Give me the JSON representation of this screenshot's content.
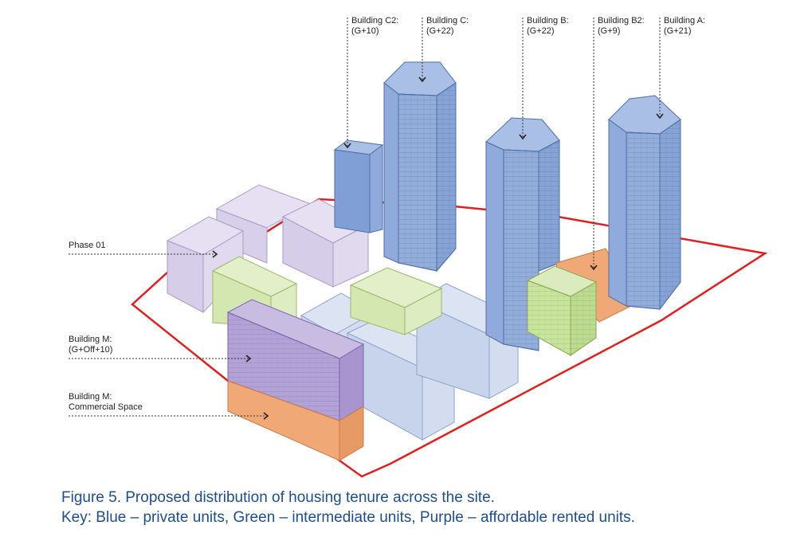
{
  "labels": {
    "building_c2": {
      "name": "Building C2:",
      "floors": "(G+10)"
    },
    "building_c": {
      "name": "Building C:",
      "floors": "(G+22)"
    },
    "building_b": {
      "name": "Building B:",
      "floors": "(G+22)"
    },
    "building_b2": {
      "name": "Building B2:",
      "floors": "(G+9)"
    },
    "building_a": {
      "name": "Building A:",
      "floors": "(G+21)"
    },
    "phase_01": "Phase 01",
    "building_m": {
      "name": "Building M:",
      "floors": "(G+Off+10)"
    },
    "building_m_commercial": {
      "name": "Building M:",
      "use": "Commercial Space"
    }
  },
  "caption": {
    "line1": "Figure 5. Proposed distribution of housing tenure across the site.",
    "line2": "Key: Blue – private units, Green – intermediate units, Purple – affordable rented units."
  },
  "colors": {
    "private_blue": "#93aedb",
    "private_blue_light": "#cfdaee",
    "intermediate_green": "#c9e59a",
    "intermediate_green_light": "#e3efc8",
    "affordable_purple": "#b4a2d6",
    "affordable_purple_light": "#ddd5ec",
    "commercial_orange": "#f0a877",
    "site_boundary_red": "#e02020",
    "caption_blue": "#1f4e8c"
  }
}
